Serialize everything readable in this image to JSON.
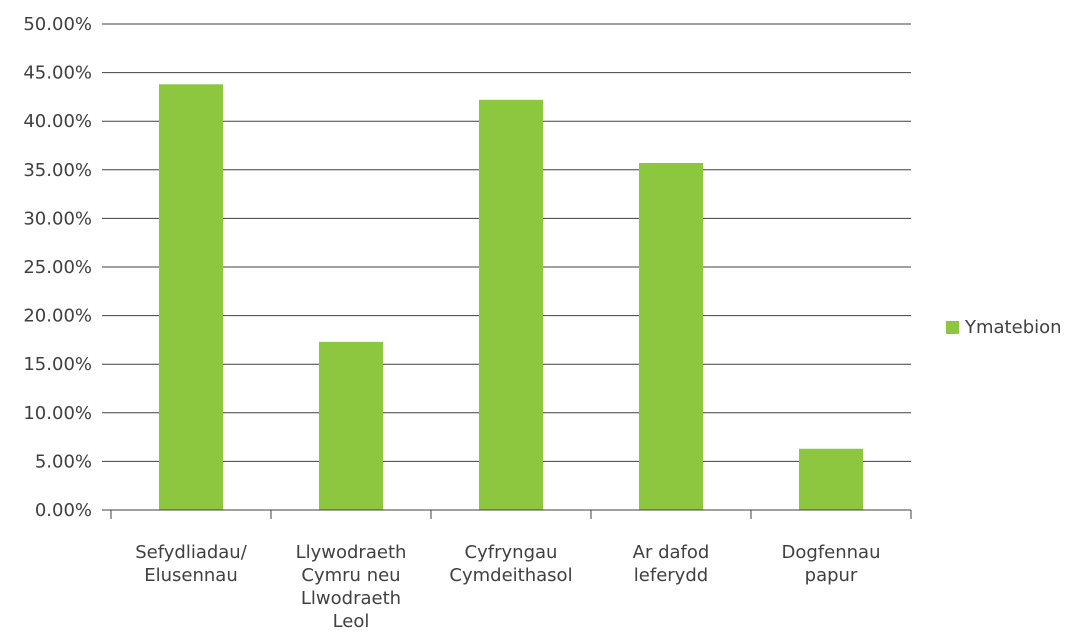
{
  "chart_data": {
    "type": "bar",
    "categories": [
      [
        "Sefydliadau/",
        "Elusennau"
      ],
      [
        "Llywodraeth",
        "Cymru neu",
        "Llwodraeth",
        "Leol"
      ],
      [
        "Cyfryngau",
        "Cymdeithasol"
      ],
      [
        "Ar dafod",
        "leferydd"
      ],
      [
        "Dogfennau",
        "papur"
      ]
    ],
    "series": [
      {
        "name": "Ymatebion",
        "values": [
          43.8,
          17.3,
          42.2,
          35.7,
          6.3
        ],
        "color": "#8dc63f"
      }
    ],
    "ylim": [
      0,
      50
    ],
    "ytick_step": 5,
    "ytick_labels": [
      "0.00%",
      "5.00%",
      "10.00%",
      "15.00%",
      "20.00%",
      "25.00%",
      "30.00%",
      "35.00%",
      "40.00%",
      "45.00%",
      "50.00%"
    ],
    "grid": true,
    "legend_position": "right"
  }
}
